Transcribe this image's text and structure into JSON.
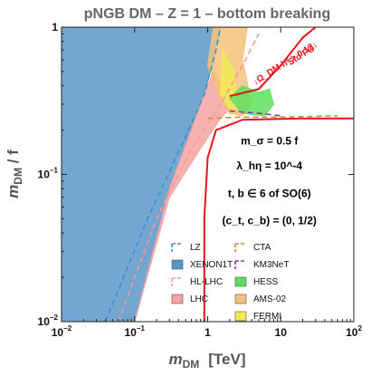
{
  "chart_data": {
    "type": "area",
    "title": "pNGB DM  –  Z = 1  –  bottom breaking",
    "xlabel": "m_DM   [TeV]",
    "ylabel": "m_DM / f",
    "xscale": "log",
    "yscale": "log",
    "xlim": [
      0.01,
      100
    ],
    "ylim": [
      0.01,
      1
    ],
    "x_ticks": [
      {
        "v": 0.01,
        "base": "10",
        "exp": "−2"
      },
      {
        "v": 0.1,
        "base": "10",
        "exp": "−1"
      },
      {
        "v": 1,
        "base": "1",
        "exp": ""
      },
      {
        "v": 10,
        "base": "10",
        "exp": ""
      },
      {
        "v": 100,
        "base": "10",
        "exp": "2"
      }
    ],
    "y_ticks": [
      {
        "v": 0.01,
        "base": "10",
        "exp": "−2"
      },
      {
        "v": 0.1,
        "base": "10",
        "exp": "−1"
      },
      {
        "v": 1,
        "base": "1",
        "exp": ""
      }
    ],
    "annotations": [
      {
        "text": "m_σ = 0.5 f",
        "x": 7,
        "y": 0.16
      },
      {
        "text": "λ_hη = 10^-4",
        "x": 7,
        "y": 0.108
      },
      {
        "text": "t, b ∈ 6 of SO(6)",
        "x": 7,
        "y": 0.07
      },
      {
        "text": "(c_t, c_b) = (0, 1/2)",
        "x": 7,
        "y": 0.046
      }
    ],
    "red_annotations": [
      "↓Ω_DM h² > 0.12↓",
      "Std FO"
    ],
    "legend_left": [
      {
        "label": "LZ",
        "style": "dashed",
        "color": "#3b8fcb"
      },
      {
        "label": "XENON1T",
        "style": "filled",
        "color": "#5b97c9"
      },
      {
        "label": "HL-LHC",
        "style": "dashed",
        "color": "#f49b99"
      },
      {
        "label": "LHC",
        "style": "filled",
        "color": "#f7a3a3"
      }
    ],
    "legend_right": [
      {
        "label": "CTA",
        "style": "dashed",
        "color": "#d08a3a"
      },
      {
        "label": "KM3NeT",
        "style": "dashed",
        "color": "#7b3fa0"
      },
      {
        "label": "HESS",
        "style": "filled",
        "color": "#5ee05e"
      },
      {
        "label": "AMS-02",
        "style": "filled",
        "color": "#f3c27a"
      },
      {
        "label": "FERMI",
        "style": "filled",
        "color": "#f3ea55"
      }
    ],
    "regions": [
      {
        "name": "XENON1T",
        "color": "#5b97c9",
        "points": [
          [
            0.01,
            0.01
          ],
          [
            0.1,
            0.01
          ],
          [
            0.3,
            0.08
          ],
          [
            0.9,
            0.35
          ],
          [
            1.2,
            0.6
          ],
          [
            1.5,
            1.0
          ],
          [
            0.01,
            1.0
          ]
        ]
      },
      {
        "name": "LHC",
        "color": "#f7a3a3",
        "points": [
          [
            0.1,
            0.01
          ],
          [
            0.3,
            0.07
          ],
          [
            0.8,
            0.15
          ],
          [
            1.5,
            0.24
          ],
          [
            2.0,
            0.28
          ],
          [
            2.0,
            0.32
          ],
          [
            1.2,
            0.5
          ],
          [
            0.9,
            0.35
          ],
          [
            0.3,
            0.08
          ]
        ]
      },
      {
        "name": "AMS-02",
        "color": "#f3c27a",
        "points": [
          [
            1.2,
            1.0
          ],
          [
            1.0,
            0.55
          ],
          [
            1.5,
            0.32
          ],
          [
            2.0,
            0.26
          ],
          [
            3.0,
            0.25
          ],
          [
            4.0,
            0.3
          ],
          [
            3.0,
            0.6
          ],
          [
            3.5,
            1.0
          ]
        ]
      },
      {
        "name": "FERMI",
        "color": "#f3ea55",
        "points": [
          [
            1.6,
            0.7
          ],
          [
            1.5,
            0.35
          ],
          [
            2.0,
            0.28
          ],
          [
            2.5,
            0.28
          ],
          [
            2.3,
            0.5
          ]
        ]
      },
      {
        "name": "HESS",
        "color": "#5ee05e",
        "points": [
          [
            2.0,
            0.33
          ],
          [
            3.0,
            0.26
          ],
          [
            6.0,
            0.25
          ],
          [
            8.0,
            0.3
          ],
          [
            7.0,
            0.38
          ],
          [
            5.0,
            0.36
          ],
          [
            3.0,
            0.4
          ]
        ]
      }
    ],
    "curves": [
      {
        "name": "LZ",
        "style": "dashed",
        "color": "#3b8fcb",
        "points": [
          [
            0.04,
            0.01
          ],
          [
            0.15,
            0.05
          ],
          [
            0.5,
            0.18
          ],
          [
            0.9,
            0.35
          ],
          [
            1.3,
            0.7
          ],
          [
            1.5,
            1.0
          ]
        ]
      },
      {
        "name": "HL-LHC",
        "style": "dashed",
        "color": "#f49b99",
        "points": [
          [
            0.06,
            0.01
          ],
          [
            0.2,
            0.05
          ],
          [
            0.6,
            0.15
          ],
          [
            1.5,
            0.3
          ],
          [
            3.0,
            0.55
          ],
          [
            5.0,
            0.9
          ]
        ]
      },
      {
        "name": "CTA",
        "style": "dashed",
        "color": "#d08a3a",
        "points": [
          [
            1.0,
            0.24
          ],
          [
            3.0,
            0.245
          ],
          [
            10,
            0.245
          ],
          [
            30,
            0.248
          ],
          [
            60,
            0.25
          ]
        ]
      },
      {
        "name": "KM3NeT",
        "style": "dashed",
        "color": "#7b3fa0",
        "points": [
          [
            2.0,
            0.27
          ],
          [
            5.0,
            0.26
          ],
          [
            10,
            0.25
          ]
        ]
      },
      {
        "name": "Std FO boundary",
        "style": "solid",
        "color": "#e8131b",
        "points": [
          [
            0.9,
            0.01
          ],
          [
            0.9,
            0.05
          ],
          [
            1.0,
            0.13
          ],
          [
            1.3,
            0.2
          ],
          [
            3.0,
            0.235
          ],
          [
            20,
            0.24
          ],
          [
            100,
            0.24
          ]
        ]
      },
      {
        "name": "Omega boundary",
        "style": "solid",
        "color": "#e8131b",
        "points": [
          [
            2.0,
            0.34
          ],
          [
            5.0,
            0.38
          ],
          [
            10,
            0.55
          ],
          [
            20,
            0.85
          ],
          [
            30,
            1.0
          ]
        ]
      }
    ]
  }
}
